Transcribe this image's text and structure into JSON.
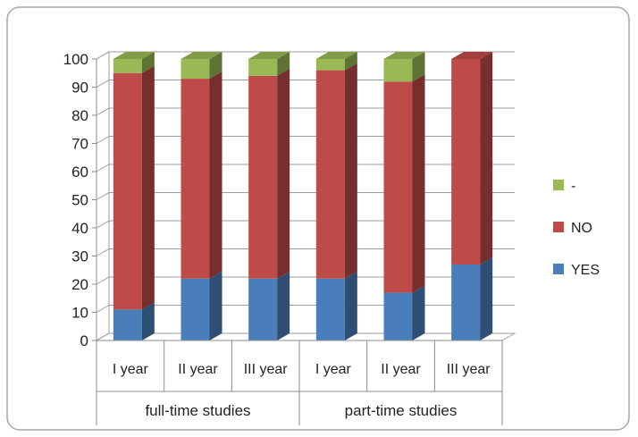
{
  "chart_data": {
    "type": "bar",
    "stacked": true,
    "three_d": true,
    "categories": [
      "I year",
      "II year",
      "III year",
      "I year",
      "II year",
      "III year"
    ],
    "groups": [
      {
        "label": "full-time studies",
        "span": [
          0,
          2
        ]
      },
      {
        "label": "part-time studies",
        "span": [
          3,
          5
        ]
      }
    ],
    "series": [
      {
        "name": "YES",
        "color": "#4a7ebb",
        "values": [
          11,
          22,
          22,
          22,
          17,
          27
        ]
      },
      {
        "name": "NO",
        "color": "#be4b48",
        "values": [
          84,
          71,
          72,
          74,
          75,
          73
        ]
      },
      {
        "name": "-",
        "color": "#98b954",
        "values": [
          5,
          7,
          6,
          4,
          8,
          0
        ]
      }
    ],
    "ylim": [
      0,
      100
    ],
    "yticks": [
      "0",
      "10",
      "20",
      "30",
      "40",
      "50",
      "60",
      "70",
      "80",
      "90",
      "100"
    ],
    "grid": true,
    "legend_position": "right",
    "legend_order": [
      "-",
      "NO",
      "YES"
    ]
  }
}
